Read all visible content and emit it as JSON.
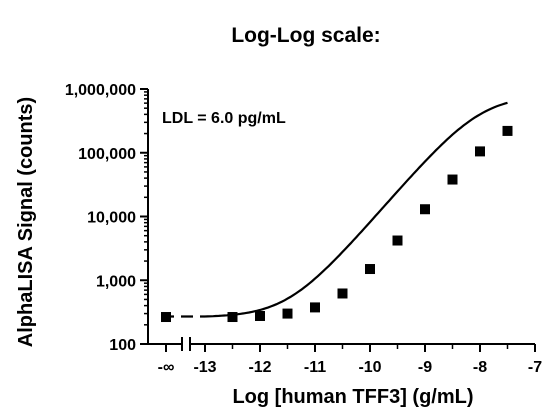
{
  "chart_data": {
    "type": "scatter",
    "title": "Log-Log scale:",
    "xlabel": "Log [human TFF3] (g/mL)",
    "ylabel": "AlphaLISA Signal (counts)",
    "annotation": "LDL = 6.0 pg/mL",
    "x_scale": "log10 concentration, with a separate -∞ (zero concentration) position before an axis break",
    "y_scale": "log",
    "xlim": [
      -13,
      -7
    ],
    "ylim": [
      100,
      1000000
    ],
    "x_ticks": [
      "-∞",
      "-13",
      "-12",
      "-11",
      "-10",
      "-9",
      "-8",
      "-7"
    ],
    "y_ticks": [
      "100",
      "1,000",
      "10,000",
      "100,000",
      "1,000,000"
    ],
    "zero_point": {
      "x_label": "-∞",
      "y": 265,
      "y_err": [
        245,
        300
      ]
    },
    "points": [
      {
        "x": -12.5,
        "y": 265
      },
      {
        "x": -12.0,
        "y": 275
      },
      {
        "x": -11.5,
        "y": 300,
        "y_err": [
          270,
          335
        ]
      },
      {
        "x": -11.0,
        "y": 375
      },
      {
        "x": -10.5,
        "y": 620
      },
      {
        "x": -10.0,
        "y": 1500
      },
      {
        "x": -9.5,
        "y": 4200
      },
      {
        "x": -9.0,
        "y": 13000
      },
      {
        "x": -8.5,
        "y": 38000
      },
      {
        "x": -8.0,
        "y": 105000
      },
      {
        "x": -7.5,
        "y": 220000
      }
    ],
    "fit": {
      "type": "4PL",
      "bottom": 262,
      "top": 800000,
      "ec50_log": -8.0,
      "hill": 1.0
    },
    "grid": false,
    "legend": "none"
  }
}
